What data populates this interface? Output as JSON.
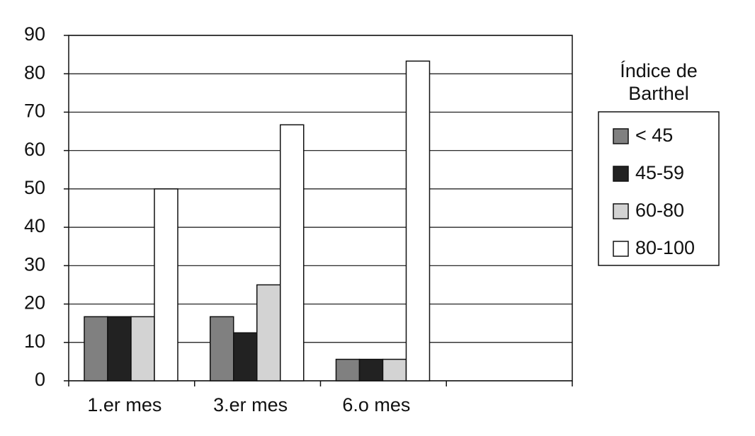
{
  "chart_data": {
    "type": "bar",
    "categories": [
      "1.er mes",
      "3.er mes",
      "6.o mes",
      null
    ],
    "series": [
      {
        "name": "< 45",
        "color": "#808080",
        "values": [
          16.7,
          16.7,
          5.6,
          null
        ]
      },
      {
        "name": "45-59",
        "color": "#222222",
        "values": [
          16.7,
          12.5,
          5.6,
          null
        ]
      },
      {
        "name": "60-80",
        "color": "#d3d3d3",
        "values": [
          16.7,
          25,
          5.6,
          null
        ]
      },
      {
        "name": "80-100",
        "color": "#ffffff",
        "values": [
          50,
          66.7,
          83.3,
          null
        ]
      }
    ],
    "legend_title": "Índice de Barthel",
    "legend": "right",
    "ylim": [
      0,
      90
    ],
    "yticks": [
      0,
      10,
      20,
      30,
      40,
      50,
      60,
      70,
      80,
      90
    ],
    "grid": true
  }
}
